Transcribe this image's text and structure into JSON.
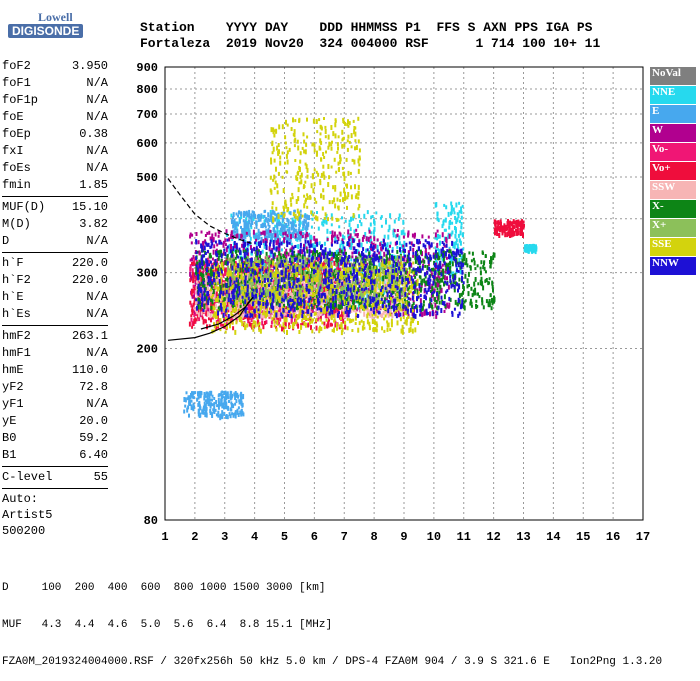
{
  "logo": {
    "line1": "Lowell",
    "line2": "DIGISONDE"
  },
  "header": {
    "line1": "Station    YYYY DAY    DDD HHMMSS P1  FFS S AXN PPS IGA PS",
    "line2": "Fortaleza  2019 Nov20  324 004000 RSF      1 714 100 10+ 11"
  },
  "params": [
    {
      "k": "foF2",
      "v": "3.950"
    },
    {
      "k": "foF1",
      "v": "N/A"
    },
    {
      "k": "foF1p",
      "v": "N/A"
    },
    {
      "k": "foE",
      "v": "N/A"
    },
    {
      "k": "foEp",
      "v": "0.38"
    },
    {
      "k": "fxI",
      "v": "N/A"
    },
    {
      "k": "foEs",
      "v": "N/A"
    },
    {
      "k": "fmin",
      "v": "1.85"
    },
    {
      "sep": true
    },
    {
      "k": "MUF(D)",
      "v": "15.10"
    },
    {
      "k": "M(D)",
      "v": "3.82"
    },
    {
      "k": "D",
      "v": "N/A"
    },
    {
      "sep": true
    },
    {
      "k": "h`F",
      "v": "220.0"
    },
    {
      "k": "h`F2",
      "v": "220.0"
    },
    {
      "k": "h`E",
      "v": "N/A"
    },
    {
      "k": "h`Es",
      "v": "N/A"
    },
    {
      "sep": true
    },
    {
      "k": "hmF2",
      "v": "263.1"
    },
    {
      "k": "hmF1",
      "v": "N/A"
    },
    {
      "k": "hmE",
      "v": "110.0"
    },
    {
      "k": "yF2",
      "v": "72.8"
    },
    {
      "k": "yF1",
      "v": "N/A"
    },
    {
      "k": "yE",
      "v": "20.0"
    },
    {
      "k": "B0",
      "v": "59.2"
    },
    {
      "k": "B1",
      "v": "6.40"
    },
    {
      "sep": true
    },
    {
      "k": "C-level",
      "v": "55"
    },
    {
      "sep": true
    },
    {
      "txt": "Auto:"
    },
    {
      "txt": "Artist5"
    },
    {
      "txt": "500200"
    }
  ],
  "legend": [
    {
      "label": "NoVal",
      "color": "#7f7f7f"
    },
    {
      "label": "NNE",
      "color": "#26d9ee"
    },
    {
      "label": "E",
      "color": "#47a8ee"
    },
    {
      "label": "W",
      "color": "#b1008f"
    },
    {
      "label": "Vo-",
      "color": "#f01675"
    },
    {
      "label": "Vo+",
      "color": "#ef0d3c"
    },
    {
      "label": "SSW",
      "color": "#f7b5b5"
    },
    {
      "label": "X-",
      "color": "#0d8516"
    },
    {
      "label": "X+",
      "color": "#8cc05a"
    },
    {
      "label": "SSE",
      "color": "#d3d30d"
    },
    {
      "label": "NNW",
      "color": "#1d10d5"
    }
  ],
  "bottom": {
    "line1": "D     100  200  400  600  800 1000 1500 3000 [km]",
    "line2": "MUF   4.3  4.4  4.6  5.0  5.6  6.4  8.8 15.1 [MHz]",
    "line3": "FZA0M_2019324004000.RSF / 320fx256h 50 kHz 5.0 km / DPS-4 FZA0M 904 / 3.9 S 321.6 E   Ion2Png 1.3.20"
  },
  "chart_data": {
    "type": "scatter",
    "title": "",
    "xlabel": "",
    "ylabel": "",
    "xlim": [
      1,
      17
    ],
    "ylim": [
      80,
      900
    ],
    "x_ticks": [
      1,
      2,
      3,
      4,
      5,
      6,
      7,
      8,
      9,
      10,
      11,
      12,
      13,
      14,
      15,
      16,
      17
    ],
    "y_ticks": [
      80,
      200,
      300,
      400,
      500,
      600,
      700,
      800,
      900
    ],
    "grid": true,
    "y_scale": "log",
    "series": [
      {
        "name": "NoVal",
        "color": "#7f7f7f",
        "regions": []
      },
      {
        "name": "NNE",
        "color": "#26d9ee",
        "regions": [
          [
            3,
            9,
            250,
            420
          ],
          [
            10,
            11,
            300,
            440
          ],
          [
            13,
            13.4,
            340,
            350
          ]
        ]
      },
      {
        "name": "E",
        "color": "#47a8ee",
        "regions": [
          [
            1.6,
            3.6,
            140,
            160
          ],
          [
            3.2,
            5.8,
            360,
            420
          ]
        ]
      },
      {
        "name": "W",
        "color": "#b1008f",
        "regions": [
          [
            1.8,
            10.5,
            240,
            380
          ]
        ]
      },
      {
        "name": "Vo-",
        "color": "#f01675",
        "regions": [
          [
            1.8,
            7,
            230,
            330
          ]
        ]
      },
      {
        "name": "Vo+",
        "color": "#ef0d3c",
        "regions": [
          [
            1.8,
            7,
            225,
            320
          ],
          [
            12,
            13,
            370,
            400
          ]
        ]
      },
      {
        "name": "SSW",
        "color": "#f7b5b5",
        "regions": [
          [
            2,
            9,
            240,
            300
          ]
        ]
      },
      {
        "name": "X-",
        "color": "#0d8516",
        "regions": [
          [
            2,
            12,
            250,
            340
          ]
        ]
      },
      {
        "name": "X+",
        "color": "#8cc05a",
        "regions": [
          [
            3,
            9,
            260,
            330
          ]
        ]
      },
      {
        "name": "SSE",
        "color": "#d3d30d",
        "regions": [
          [
            2.5,
            9.5,
            220,
            320
          ],
          [
            4.5,
            7.5,
            400,
            690
          ]
        ]
      },
      {
        "name": "NNW",
        "color": "#1d10d5",
        "regions": [
          [
            2,
            11,
            240,
            360
          ]
        ]
      }
    ],
    "curves": {
      "profile_solid": [
        [
          1.1,
          209
        ],
        [
          2,
          212
        ],
        [
          2.5,
          217
        ],
        [
          3,
          225
        ],
        [
          3.5,
          238
        ],
        [
          3.8,
          256
        ],
        [
          3.95,
          263
        ]
      ],
      "trace_dashed": [
        [
          1.1,
          496
        ],
        [
          1.5,
          455
        ],
        [
          2,
          410
        ],
        [
          2.5,
          385
        ],
        [
          3,
          370
        ],
        [
          3.5,
          358
        ],
        [
          3.95,
          350
        ]
      ],
      "trace_lower": [
        [
          2.2,
          222
        ],
        [
          2.8,
          228
        ],
        [
          3.3,
          238
        ],
        [
          3.7,
          250
        ],
        [
          3.95,
          263
        ]
      ]
    }
  }
}
